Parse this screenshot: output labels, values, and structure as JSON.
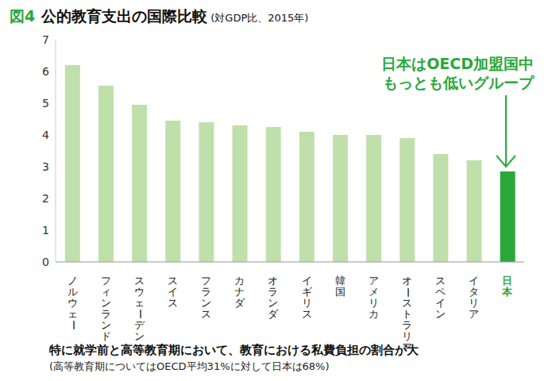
{
  "chart_data": {
    "type": "bar",
    "title": "図4 公的教育支出の国際比較",
    "subtitle": "(対GDP比、2015年)",
    "categories": [
      "ノルウェー",
      "フィンランド",
      "スウェーデン",
      "スイス",
      "フランス",
      "カナダ",
      "オランダ",
      "イギリス",
      "韓国",
      "アメリカ",
      "オーストラリア",
      "スペイン",
      "イタリア",
      "日本"
    ],
    "values": [
      6.2,
      5.55,
      4.95,
      4.45,
      4.4,
      4.3,
      4.25,
      4.1,
      4.0,
      4.0,
      3.9,
      3.4,
      3.2,
      2.85
    ],
    "colors": [
      "#bfe0ab",
      "#bfe0ab",
      "#bfe0ab",
      "#bfe0ab",
      "#bfe0ab",
      "#bfe0ab",
      "#bfe0ab",
      "#bfe0ab",
      "#bfe0ab",
      "#bfe0ab",
      "#bfe0ab",
      "#bfe0ab",
      "#bfe0ab",
      "#2aa83c"
    ],
    "ylim": [
      0,
      7
    ],
    "yticks": [
      0,
      1,
      2,
      3,
      4,
      5,
      6,
      7
    ],
    "grid": false,
    "annotation": [
      "日本はOECD加盟国中",
      "もっとも低いグループ"
    ],
    "footnote": "特に就学前と高等教育期において、教育における私費負担の割合が大",
    "footnote_sub": "(高等教育期についてはOECD平均31%に対して日本は68%)"
  }
}
